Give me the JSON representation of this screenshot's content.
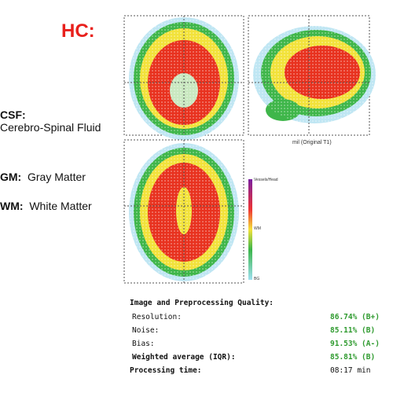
{
  "header": {
    "title": "HC:"
  },
  "legend": {
    "items": [
      {
        "abbr": "CSF:",
        "label": "Cerebro-Spinal Fluid"
      },
      {
        "abbr": "GM:",
        "label": "Gray Matter"
      },
      {
        "abbr": "WM:",
        "label": "White Matter"
      }
    ]
  },
  "images": {
    "caption": "mil (Original T1)",
    "colorbar": {
      "top": "Vessels/Head",
      "middle": "WM",
      "bottom": "BG"
    }
  },
  "quality": {
    "title": "Image and Preprocessing Quality:",
    "rows": [
      [
        "Resolution:",
        "86.74% (B+)"
      ],
      [
        "Noise:",
        "85.11% (B)"
      ],
      [
        "Bias:",
        "91.53% (A-)"
      ],
      [
        "Weighted average (IQR):",
        "85.81% (B)"
      ]
    ],
    "processing": {
      "label": "Processing time:",
      "value": "08:17 min"
    }
  }
}
